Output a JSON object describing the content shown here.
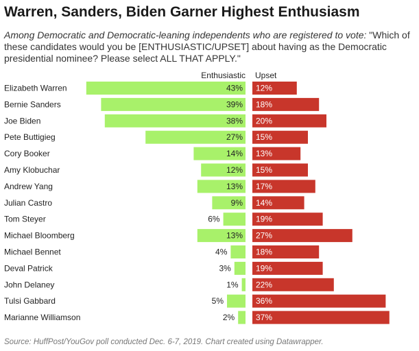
{
  "title": "Warren, Sanders, Biden Garner Highest Enthusiasm",
  "subtitle_lead": "Among Democratic and Democratic-leaning independents who are registered to vote:",
  "subtitle_question": " \"Which of these candidates would you be [ENTHUSIASTIC/UPSET] about having as the Democratic presidential nominee? Please select ALL THAT APPLY.\"",
  "source": "Source: HuffPost/YouGov poll conducted Dec. 6-7, 2019. Chart created using Datawrapper.",
  "colors": {
    "enthusiastic": "#a8f16a",
    "upset": "#c8362b"
  },
  "chart_data": {
    "type": "bar",
    "categories": [
      "Elizabeth Warren",
      "Bernie Sanders",
      "Joe Biden",
      "Pete Buttigieg",
      "Cory Booker",
      "Amy Klobuchar",
      "Andrew Yang",
      "Julian Castro",
      "Tom Steyer",
      "Michael Bloomberg",
      "Michael Bennet",
      "Deval Patrick",
      "John Delaney",
      "Tulsi Gabbard",
      "Marianne Williamson"
    ],
    "series": [
      {
        "name": "Enthusiastic",
        "values": [
          43,
          39,
          38,
          27,
          14,
          12,
          13,
          9,
          6,
          13,
          4,
          3,
          1,
          5,
          2
        ]
      },
      {
        "name": "Upset",
        "values": [
          12,
          18,
          20,
          15,
          13,
          15,
          17,
          14,
          19,
          27,
          18,
          19,
          22,
          36,
          37
        ]
      }
    ],
    "value_suffix": "%"
  }
}
